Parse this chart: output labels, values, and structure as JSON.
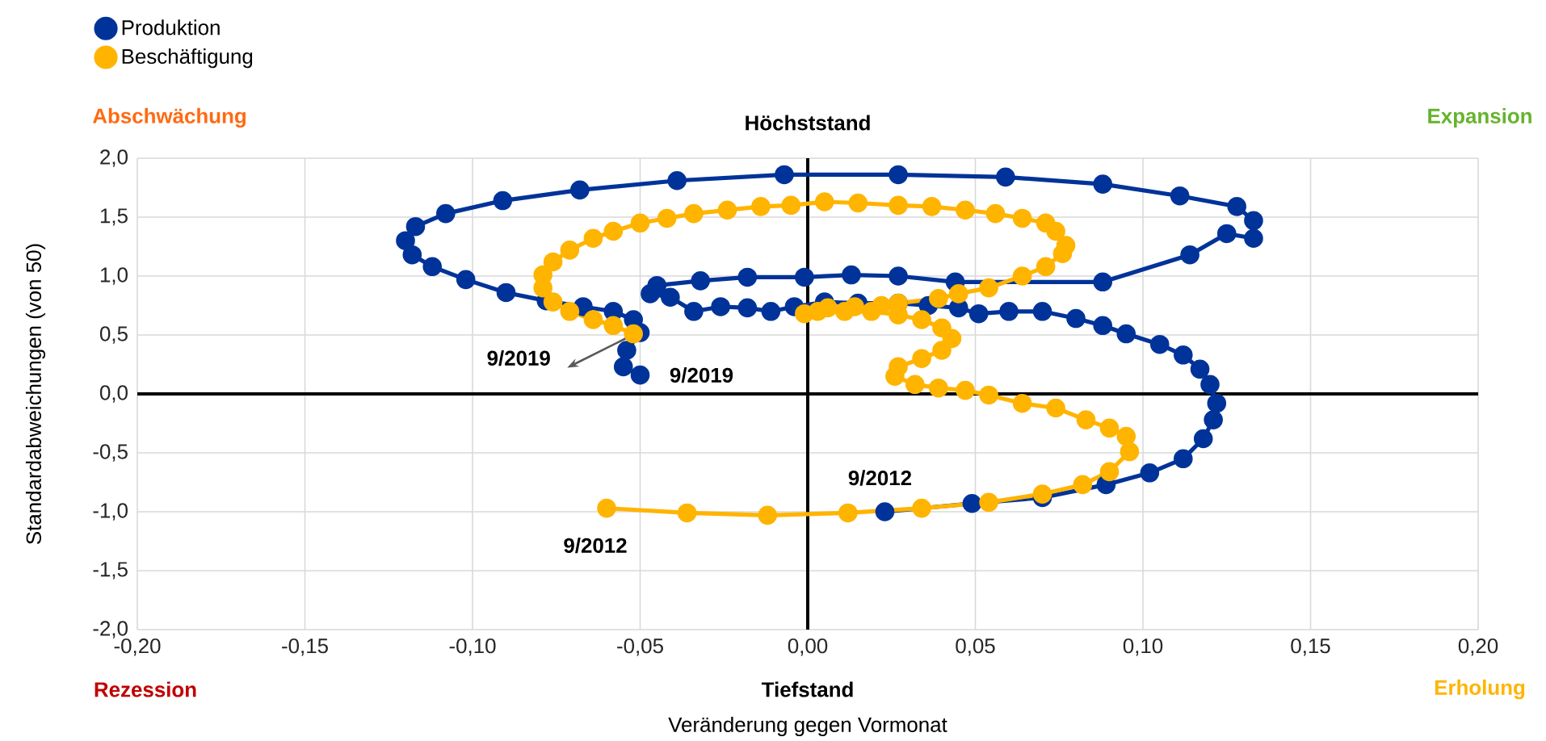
{
  "chart_data": {
    "type": "line",
    "xlabel": "Veränderung gegen Vormonat",
    "ylabel": "Standardabweichungen (von 50)",
    "xlim": [
      -0.2,
      0.2
    ],
    "ylim": [
      -2.0,
      2.0
    ],
    "xticks": [
      {
        "value": -0.2,
        "label": "-0,20"
      },
      {
        "value": -0.15,
        "label": "-0,15"
      },
      {
        "value": -0.1,
        "label": "-0,10"
      },
      {
        "value": -0.05,
        "label": "-0,05"
      },
      {
        "value": 0,
        "label": "0,00"
      },
      {
        "value": 0.05,
        "label": "0,05"
      },
      {
        "value": 0.1,
        "label": "0,10"
      },
      {
        "value": 0.15,
        "label": "0,15"
      },
      {
        "value": 0.2,
        "label": "0,20"
      }
    ],
    "yticks": [
      {
        "value": -2.0,
        "label": "-2,0"
      },
      {
        "value": -1.5,
        "label": "-1,5"
      },
      {
        "value": -1.0,
        "label": "-1,0"
      },
      {
        "value": -0.5,
        "label": "-0,5"
      },
      {
        "value": 0,
        "label": "0,0"
      },
      {
        "value": 0.5,
        "label": "0,5"
      },
      {
        "value": 1.0,
        "label": "1,0"
      },
      {
        "value": 1.5,
        "label": "1,5"
      },
      {
        "value": 2.0,
        "label": "2,0"
      }
    ],
    "grid": true,
    "legend": "top left",
    "marker": "circle",
    "line_style": "solid",
    "annotations": [
      {
        "text": "9/2019",
        "x": -0.052,
        "y": 0.51
      },
      {
        "text": "9/2019",
        "x": -0.05,
        "y": 0.16
      },
      {
        "text": "9/2012",
        "x": 0.023,
        "y": -1.0
      },
      {
        "text": "9/2012",
        "x": -0.06,
        "y": -0.97
      },
      "Abschwächung",
      "Höchststand",
      "Expansion",
      "Rezession",
      "Tiefstand",
      "Erholung"
    ],
    "series": [
      {
        "name": "Produktion",
        "color": "#003399",
        "x": [
          0.023,
          0.049,
          0.07,
          0.089,
          0.102,
          0.112,
          0.118,
          0.121,
          0.122,
          0.12,
          0.117,
          0.112,
          0.105,
          0.095,
          0.088,
          0.08,
          0.07,
          0.06,
          0.051,
          0.045,
          0.036,
          0.027,
          0.015,
          0.005,
          -0.004,
          -0.011,
          -0.018,
          -0.026,
          -0.034,
          -0.041,
          -0.047,
          -0.045,
          -0.032,
          -0.018,
          -0.001,
          0.013,
          0.027,
          0.044,
          0.088,
          0.114,
          0.125,
          0.133,
          0.133,
          0.128,
          0.111,
          0.088,
          0.059,
          0.027,
          -0.007,
          -0.039,
          -0.068,
          -0.091,
          -0.108,
          -0.117,
          -0.12,
          -0.118,
          -0.112,
          -0.102,
          -0.09,
          -0.078,
          -0.067,
          -0.058,
          -0.052,
          -0.05,
          -0.054,
          -0.055,
          -0.05
        ],
        "values": [
          -1.0,
          -0.93,
          -0.88,
          -0.77,
          -0.67,
          -0.55,
          -0.38,
          -0.22,
          -0.08,
          0.08,
          0.21,
          0.33,
          0.42,
          0.51,
          0.58,
          0.64,
          0.7,
          0.7,
          0.68,
          0.73,
          0.75,
          0.77,
          0.77,
          0.78,
          0.74,
          0.7,
          0.73,
          0.74,
          0.7,
          0.82,
          0.85,
          0.92,
          0.96,
          0.99,
          0.99,
          1.01,
          1.0,
          0.95,
          0.95,
          1.18,
          1.36,
          1.32,
          1.47,
          1.59,
          1.68,
          1.78,
          1.84,
          1.86,
          1.86,
          1.81,
          1.73,
          1.64,
          1.53,
          1.42,
          1.3,
          1.18,
          1.08,
          0.97,
          0.86,
          0.79,
          0.74,
          0.7,
          0.63,
          0.52,
          0.37,
          0.23,
          0.16
        ]
      },
      {
        "name": "Beschäftigung",
        "color": "#ffb400",
        "x": [
          -0.06,
          -0.036,
          -0.012,
          0.012,
          0.034,
          0.054,
          0.07,
          0.082,
          0.09,
          0.096,
          0.095,
          0.09,
          0.083,
          0.074,
          0.064,
          0.054,
          0.047,
          0.039,
          0.032,
          0.026,
          0.027,
          0.034,
          0.04,
          0.043,
          0.04,
          0.034,
          0.027,
          0.019,
          0.011,
          0.003,
          -0.001,
          0.006,
          0.014,
          0.022,
          0.027,
          0.039,
          0.045,
          0.054,
          0.064,
          0.071,
          0.076,
          0.077,
          0.074,
          0.071,
          0.064,
          0.056,
          0.047,
          0.037,
          0.027,
          0.015,
          0.005,
          -0.005,
          -0.014,
          -0.024,
          -0.034,
          -0.042,
          -0.05,
          -0.058,
          -0.064,
          -0.071,
          -0.076,
          -0.079,
          -0.079,
          -0.076,
          -0.071,
          -0.064,
          -0.058,
          -0.052
        ],
        "values": [
          -0.97,
          -1.01,
          -1.03,
          -1.01,
          -0.97,
          -0.92,
          -0.85,
          -0.77,
          -0.66,
          -0.49,
          -0.36,
          -0.29,
          -0.22,
          -0.12,
          -0.08,
          -0.01,
          0.03,
          0.05,
          0.08,
          0.15,
          0.23,
          0.3,
          0.37,
          0.47,
          0.56,
          0.63,
          0.67,
          0.7,
          0.7,
          0.7,
          0.68,
          0.73,
          0.74,
          0.75,
          0.77,
          0.81,
          0.85,
          0.9,
          1.0,
          1.08,
          1.19,
          1.26,
          1.38,
          1.45,
          1.49,
          1.53,
          1.56,
          1.59,
          1.6,
          1.62,
          1.63,
          1.6,
          1.59,
          1.56,
          1.53,
          1.49,
          1.45,
          1.38,
          1.32,
          1.22,
          1.12,
          1.01,
          0.9,
          0.78,
          0.7,
          0.63,
          0.58,
          0.51
        ]
      }
    ]
  }
}
